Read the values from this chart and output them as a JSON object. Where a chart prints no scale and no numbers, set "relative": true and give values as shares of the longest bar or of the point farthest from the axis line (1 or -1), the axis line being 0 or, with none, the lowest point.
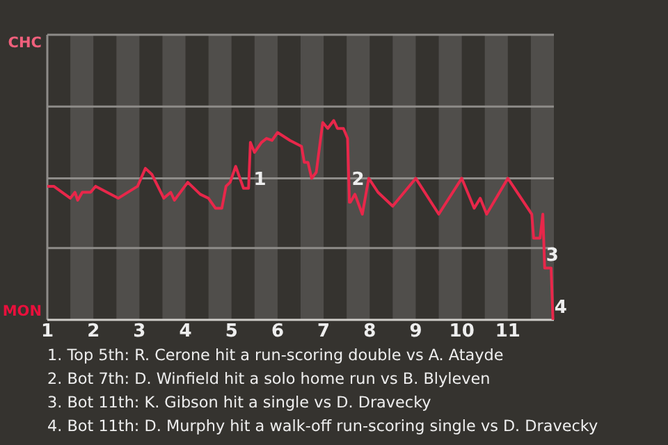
{
  "chart_data": {
    "type": "line",
    "relative": true,
    "xlim": [
      1,
      12
    ],
    "xticks": [
      1,
      2,
      3,
      4,
      5,
      6,
      7,
      8,
      9,
      10,
      11
    ],
    "marker": "none",
    "line_style": "solid",
    "ref_lines": [
      {
        "axis": "y",
        "value": 0.36,
        "color": "#8e8c89"
      },
      {
        "axis": "y",
        "value": 0.71,
        "color": "#8e8c89"
      },
      {
        "axis": "y",
        "value": 1.07,
        "color": "#8e8c89"
      },
      {
        "axis": "y",
        "value": 1.43,
        "color": "#8e8c89"
      }
    ],
    "x": [
      1.0,
      1.14,
      1.5,
      1.6,
      1.66,
      1.76,
      1.94,
      2.05,
      2.54,
      2.96,
      3.13,
      3.27,
      3.53,
      3.68,
      3.76,
      4.05,
      4.32,
      4.5,
      4.65,
      4.79,
      4.88,
      4.97,
      5.09,
      5.26,
      5.37,
      5.41,
      5.5,
      5.65,
      5.76,
      5.88,
      6.0,
      6.27,
      6.52,
      6.58,
      6.66,
      6.74,
      6.84,
      6.98,
      7.09,
      7.22,
      7.3,
      7.43,
      7.52,
      7.56,
      7.58,
      7.68,
      7.84,
      7.98,
      8.18,
      8.5,
      9.0,
      9.5,
      10.0,
      10.27,
      10.4,
      10.54,
      11.0,
      11.52,
      11.56,
      11.7,
      11.76,
      11.8,
      11.94,
      11.98
    ],
    "series": [
      {
        "color": "#e8274a",
        "values": [
          0.67,
          0.67,
          0.61,
          0.64,
          0.6,
          0.64,
          0.64,
          0.67,
          0.61,
          0.67,
          0.76,
          0.73,
          0.61,
          0.64,
          0.6,
          0.69,
          0.63,
          0.61,
          0.56,
          0.56,
          0.67,
          0.69,
          0.77,
          0.66,
          0.66,
          0.89,
          0.84,
          0.89,
          0.91,
          0.9,
          0.94,
          0.9,
          0.87,
          0.79,
          0.79,
          0.71,
          0.74,
          0.99,
          0.96,
          1,
          0.96,
          0.96,
          0.91,
          0.59,
          0.59,
          0.63,
          0.53,
          0.71,
          0.64,
          0.57,
          0.71,
          0.53,
          0.71,
          0.56,
          0.61,
          0.53,
          0.71,
          0.53,
          0.41,
          0.41,
          0.53,
          0.26,
          0.26,
          0
        ]
      }
    ],
    "bands": [
      {
        "axis": "x",
        "from": 1.5,
        "to": 2,
        "color": "#504e4b"
      },
      {
        "axis": "x",
        "from": 2.5,
        "to": 3,
        "color": "#504e4b"
      },
      {
        "axis": "x",
        "from": 3.5,
        "to": 4,
        "color": "#504e4b"
      },
      {
        "axis": "x",
        "from": 4.5,
        "to": 5,
        "color": "#504e4b"
      },
      {
        "axis": "x",
        "from": 5.5,
        "to": 6,
        "color": "#504e4b"
      },
      {
        "axis": "x",
        "from": 6.5,
        "to": 7,
        "color": "#504e4b"
      },
      {
        "axis": "x",
        "from": 7.5,
        "to": 8,
        "color": "#504e4b"
      },
      {
        "axis": "x",
        "from": 8.5,
        "to": 9,
        "color": "#504e4b"
      },
      {
        "axis": "x",
        "from": 9.5,
        "to": 10,
        "color": "#504e4b"
      },
      {
        "axis": "x",
        "from": 10.5,
        "to": 11,
        "color": "#504e4b"
      },
      {
        "axis": "x",
        "from": 11.5,
        "to": 12,
        "color": "#504e4b"
      }
    ],
    "annotations": [
      {
        "text": "1",
        "x": 5.45,
        "y": 0.71
      },
      {
        "text": "2",
        "x": 7.58,
        "y": 0.71
      },
      {
        "text": "3",
        "x": 11.8,
        "y": 0.33
      },
      {
        "text": "4",
        "x": 11.98,
        "y": 0.07
      },
      "CHC",
      "MON",
      "1. Top 5th: R. Cerone hit a run-scoring double vs A. Atayde",
      "2. Bot 7th: D. Winfield hit a solo home run vs B. Blyleven",
      "3. Bot 11th: K. Gibson hit a single vs D. Dravecky",
      "4. Bot 11th: D. Murphy hit a walk-off run-scoring single vs D. Dravecky"
    ]
  }
}
